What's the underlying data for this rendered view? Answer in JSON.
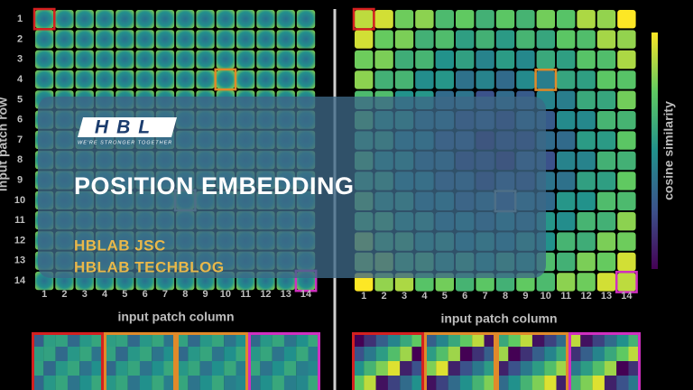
{
  "left_panel": {
    "row_label": "input patch row",
    "rows": [
      "1",
      "2",
      "3",
      "4",
      "5",
      "6",
      "7",
      "8",
      "9",
      "10",
      "11",
      "12",
      "13",
      "14"
    ],
    "columns": [
      "1",
      "2",
      "3",
      "4",
      "5",
      "6",
      "7",
      "8",
      "9",
      "10",
      "11",
      "12",
      "13",
      "14"
    ],
    "column_label": "input patch column"
  },
  "right_panel": {
    "columns": [
      "1",
      "2",
      "3",
      "4",
      "5",
      "6",
      "7",
      "8",
      "9",
      "10",
      "11",
      "12",
      "13",
      "14"
    ],
    "column_label": "input patch column",
    "colorbar_label": "cosine similarity"
  },
  "banner": {
    "logo": "HBL",
    "tagline": "WE'RE STRONGER TOGETHER",
    "title": "POSITION EMBEDDING",
    "lines": [
      "HBLAB JSC",
      "HBLAB TECHBLOG"
    ]
  }
}
